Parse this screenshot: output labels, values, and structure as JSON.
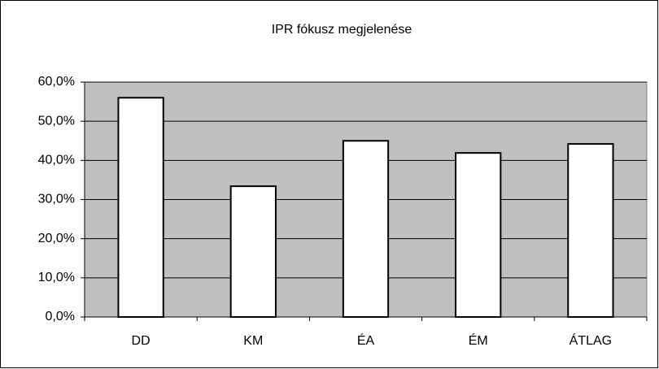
{
  "chart_data": {
    "type": "bar",
    "title": "IPR fókusz megjelenése",
    "categories": [
      "DD",
      "KM",
      "ÉA",
      "ÉM",
      "ÁTLAG"
    ],
    "values": [
      56.0,
      33.4,
      45.0,
      41.9,
      44.2
    ],
    "color": "#ffffff",
    "plot_background": "#c0c0c0",
    "ylim": [
      0,
      60
    ],
    "yticks": [
      {
        "value": 0,
        "label": "0,0%"
      },
      {
        "value": 10,
        "label": "10,0%"
      },
      {
        "value": 20,
        "label": "20,0%"
      },
      {
        "value": 30,
        "label": "30,0%"
      },
      {
        "value": 40,
        "label": "40,0%"
      },
      {
        "value": 50,
        "label": "50,0%"
      },
      {
        "value": 60,
        "label": "60,0%"
      }
    ],
    "grid": true
  }
}
